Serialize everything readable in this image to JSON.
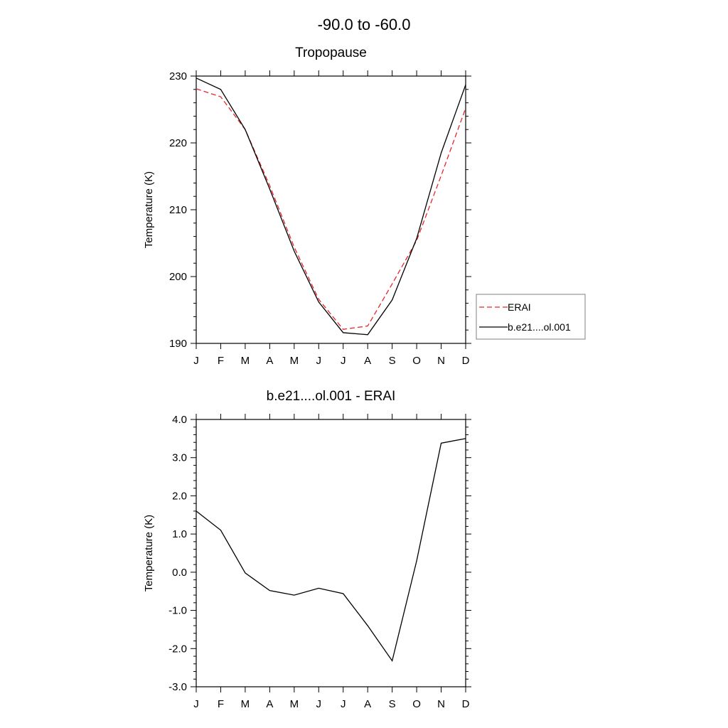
{
  "figure": {
    "title": "-90.0 to -60.0"
  },
  "colors": {
    "erai": "#e8262b",
    "model": "#000000",
    "axis": "#000000",
    "legend_border": "#808080"
  },
  "chart_data": [
    {
      "type": "line",
      "title": "Tropopause",
      "xlabel": "",
      "ylabel": "Temperature (K)",
      "categories": [
        "J",
        "F",
        "M",
        "A",
        "M",
        "J",
        "J",
        "A",
        "S",
        "O",
        "N",
        "D"
      ],
      "ylim": [
        190,
        230
      ],
      "yticks": [
        190,
        200,
        210,
        220,
        230
      ],
      "ytick_labels": [
        "190",
        "200",
        "210",
        "220",
        "230"
      ],
      "grid": false,
      "legend": "right",
      "series": [
        {
          "name": "ERAI",
          "style": "dashed",
          "color": "#e8262b",
          "values": [
            228.1,
            226.9,
            222.0,
            213.6,
            204.4,
            196.6,
            192.1,
            192.6,
            198.9,
            205.4,
            215.1,
            225.2
          ]
        },
        {
          "name": "b.e21....ol.001",
          "style": "solid",
          "color": "#000000",
          "values": [
            229.7,
            228.0,
            222.0,
            213.1,
            203.8,
            196.2,
            191.6,
            191.3,
            196.5,
            205.7,
            218.5,
            228.7
          ]
        }
      ]
    },
    {
      "type": "line",
      "title": "b.e21....ol.001 - ERAI",
      "xlabel": "",
      "ylabel": "Temperature (K)",
      "categories": [
        "J",
        "F",
        "M",
        "A",
        "M",
        "J",
        "J",
        "A",
        "S",
        "O",
        "N",
        "D"
      ],
      "ylim": [
        -3.0,
        4.0
      ],
      "yticks": [
        -3.0,
        -2.0,
        -1.0,
        0.0,
        1.0,
        2.0,
        3.0,
        4.0
      ],
      "ytick_labels": [
        "-3.0",
        "-2.0",
        "-1.0",
        "0.0",
        "1.0",
        "2.0",
        "3.0",
        "4.0"
      ],
      "grid": false,
      "series": [
        {
          "style": "solid",
          "color": "#000000",
          "values": [
            1.6,
            1.1,
            -0.02,
            -0.48,
            -0.6,
            -0.42,
            -0.56,
            -1.4,
            -2.32,
            0.3,
            3.38,
            3.5
          ]
        }
      ]
    }
  ]
}
